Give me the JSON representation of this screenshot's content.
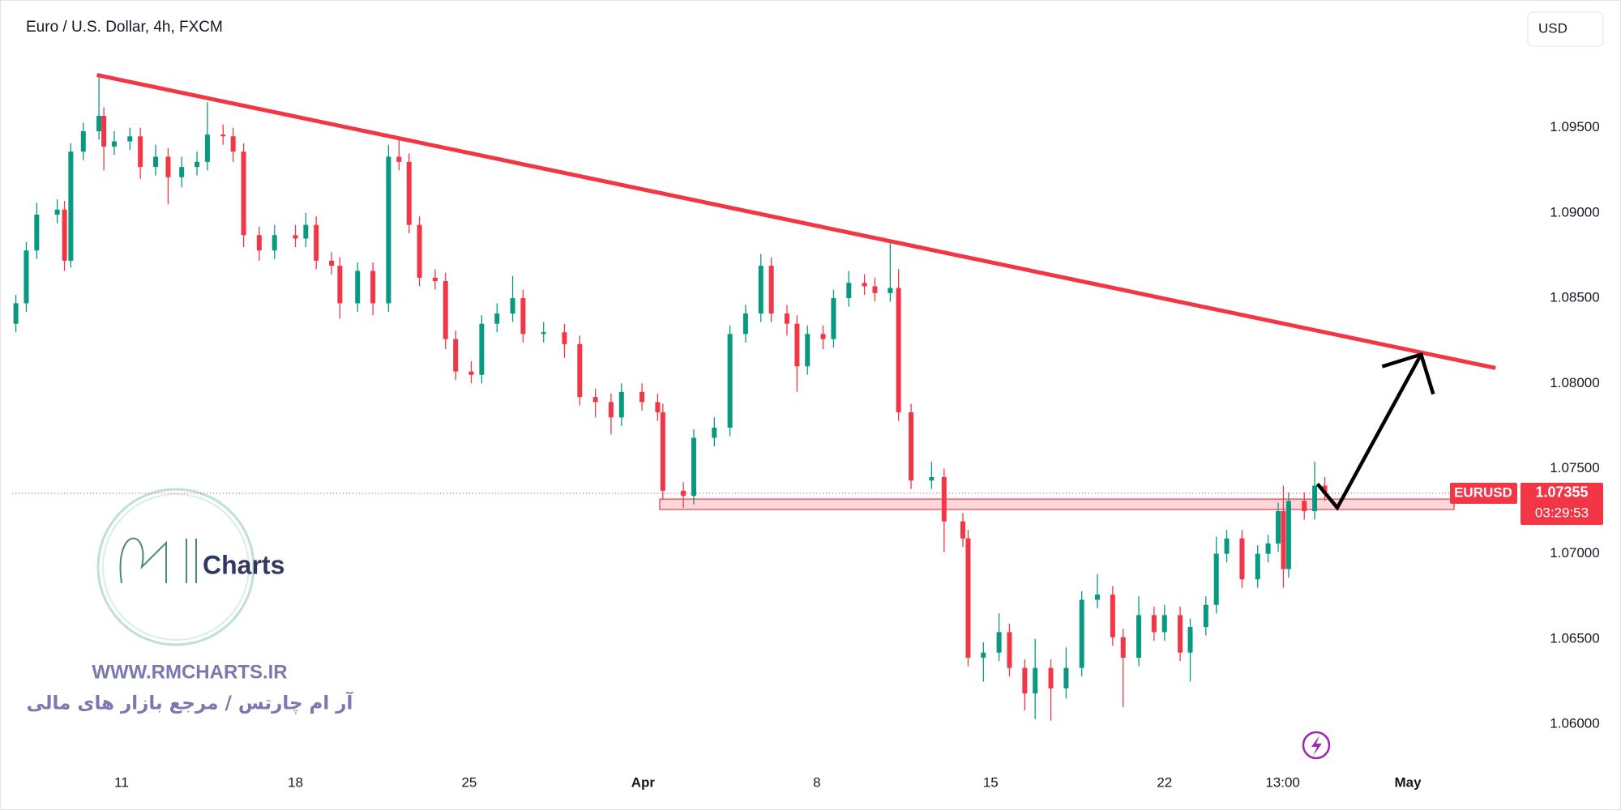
{
  "chart_data": {
    "type": "candlestick",
    "title": "Euro / U.S. Dollar, 4h, FXCM",
    "currency": "USD",
    "symbol": "EURUSD",
    "countdown": "03:29:53",
    "up_color": "#089981",
    "down_color": "#f23645",
    "x": [
      -3.04,
      -2.74,
      -2.44,
      -1.85,
      -1.64,
      -1.46,
      -1.1,
      -0.65,
      -0.51,
      -0.21,
      0.24,
      0.54,
      0.98,
      1.34,
      1.73,
      2.17,
      2.47,
      2.92,
      3.21,
      3.51,
      3.96,
      4.4,
      5,
      5.3,
      5.6,
      6.04,
      6.28,
      6.79,
      7.23,
      7.68,
      7.98,
      8.27,
      8.57,
      9.02,
      9.32,
      9.61,
      10.06,
      10.36,
      10.8,
      11.25,
      11.55,
      12.14,
      12.74,
      13.18,
      13.63,
      14.08,
      14.38,
      14.97,
      15.42,
      15.57,
      16.16,
      16.46,
      17.05,
      17.5,
      17.95,
      18.39,
      18.69,
      19.14,
      19.43,
      19.73,
      20.18,
      20.48,
      20.92,
      21.37,
      21.67,
      22.11,
      22.35,
      22.71,
      23.3,
      23.66,
      24.2,
      24.35,
      24.79,
      25.24,
      25.54,
      25.98,
      26.28,
      26.73,
      27.17,
      27.62,
      28.07,
      28.51,
      28.81,
      29.26,
      29.7,
      30,
      30.45,
      30.74,
      31.19,
      31.49,
      31.79,
      32.23,
      32.68,
      32.98,
      33.27,
      33.42,
      33.57,
      34.02,
      34.32,
      34.61
    ],
    "open": [
      1.0835,
      1.0847,
      1.0878,
      1.0899,
      1.0902,
      1.0872,
      1.0936,
      1.0948,
      1.0957,
      1.0939,
      1.0942,
      1.0945,
      1.0927,
      1.0933,
      1.0921,
      1.0927,
      1.093,
      1.0946,
      1.0945,
      1.0936,
      1.0887,
      1.0878,
      1.0887,
      1.0885,
      1.0893,
      1.0872,
      1.0869,
      1.0847,
      1.0866,
      1.0847,
      1.0933,
      1.093,
      1.0893,
      1.0862,
      1.086,
      1.0826,
      1.0807,
      1.0805,
      1.0835,
      1.0841,
      1.085,
      1.0829,
      1.083,
      1.0823,
      1.0792,
      1.0789,
      1.078,
      1.0795,
      1.0789,
      1.0783,
      1.0737,
      1.0734,
      1.0768,
      1.0774,
      1.0829,
      1.0841,
      1.0869,
      1.0841,
      1.0835,
      1.081,
      1.0829,
      1.0826,
      1.085,
      1.0859,
      1.0857,
      1.0853,
      1.0856,
      1.0783,
      1.0743,
      1.0745,
      1.0719,
      1.0709,
      1.0639,
      1.0642,
      1.0654,
      1.0633,
      1.0618,
      1.0633,
      1.0621,
      1.0633,
      1.0673,
      1.0676,
      1.0651,
      1.0639,
      1.0664,
      1.0654,
      1.0664,
      1.0642,
      1.0657,
      1.067,
      1.07,
      1.0709,
      1.0685,
      1.07,
      1.0706,
      1.0725,
      1.0691,
      1.0731,
      1.0725,
      1.074
    ],
    "high": [
      1.0852,
      1.0883,
      1.0906,
      1.0908,
      1.0907,
      1.0941,
      1.0953,
      1.0981,
      1.0962,
      1.0948,
      1.095,
      1.095,
      1.094,
      1.0938,
      1.0933,
      1.0936,
      1.0965,
      1.0952,
      1.095,
      1.0941,
      1.0892,
      1.0893,
      1.0893,
      1.09,
      1.0898,
      1.0877,
      1.0874,
      1.0871,
      1.0871,
      1.094,
      1.0943,
      1.0935,
      1.0898,
      1.0867,
      1.0865,
      1.0831,
      1.0813,
      1.084,
      1.0847,
      1.0863,
      1.0855,
      1.0836,
      1.0835,
      1.0828,
      1.0797,
      1.0794,
      1.08,
      1.08,
      1.0794,
      1.0788,
      1.0742,
      1.0773,
      1.078,
      1.0834,
      1.0846,
      1.0876,
      1.0874,
      1.0846,
      1.084,
      1.0834,
      1.0834,
      1.0855,
      1.0866,
      1.0864,
      1.0862,
      1.0883,
      1.0867,
      1.0788,
      1.0754,
      1.075,
      1.0724,
      1.0714,
      1.0648,
      1.0665,
      1.0659,
      1.0638,
      1.065,
      1.0638,
      1.0645,
      1.0678,
      1.0688,
      1.0681,
      1.0656,
      1.0675,
      1.0669,
      1.067,
      1.0669,
      1.0662,
      1.0675,
      1.071,
      1.0714,
      1.0714,
      1.0705,
      1.0711,
      1.073,
      1.074,
      1.0736,
      1.0736,
      1.0754,
      1.0745
    ],
    "low": [
      1.083,
      1.0842,
      1.0873,
      1.0894,
      1.0866,
      1.0868,
      1.0931,
      1.0943,
      1.0925,
      1.0934,
      1.0937,
      1.092,
      1.0922,
      1.0905,
      1.0915,
      1.0922,
      1.0925,
      1.094,
      1.093,
      1.088,
      1.0872,
      1.0873,
      1.088,
      1.088,
      1.0867,
      1.0864,
      1.0838,
      1.0842,
      1.084,
      1.0842,
      1.0925,
      1.0888,
      1.0857,
      1.0855,
      1.082,
      1.0802,
      1.08,
      1.08,
      1.083,
      1.0836,
      1.0824,
      1.0824,
      1.0815,
      1.0787,
      1.078,
      1.077,
      1.0775,
      1.0784,
      1.0778,
      1.0732,
      1.0727,
      1.0729,
      1.0763,
      1.0769,
      1.0824,
      1.0836,
      1.0836,
      1.0828,
      1.0795,
      1.0805,
      1.082,
      1.0821,
      1.0845,
      1.0852,
      1.0848,
      1.0848,
      1.0778,
      1.0738,
      1.0738,
      1.0701,
      1.0704,
      1.0634,
      1.0625,
      1.0637,
      1.0628,
      1.0608,
      1.0603,
      1.0602,
      1.0615,
      1.0628,
      1.0668,
      1.0646,
      1.061,
      1.0634,
      1.0649,
      1.0649,
      1.0637,
      1.0625,
      1.0652,
      1.0665,
      1.0695,
      1.068,
      1.068,
      1.0695,
      1.0701,
      1.068,
      1.0686,
      1.072,
      1.072,
      1.0731
    ],
    "close": [
      1.0847,
      1.0878,
      1.0899,
      1.0902,
      1.0872,
      1.0936,
      1.0948,
      1.0957,
      1.0939,
      1.0942,
      1.0945,
      1.0927,
      1.0933,
      1.0921,
      1.0927,
      1.093,
      1.0946,
      1.0945,
      1.0936,
      1.0887,
      1.0878,
      1.0887,
      1.0885,
      1.0893,
      1.0872,
      1.0869,
      1.0847,
      1.0866,
      1.0847,
      1.0933,
      1.093,
      1.0893,
      1.0862,
      1.086,
      1.0826,
      1.0807,
      1.0805,
      1.0835,
      1.0841,
      1.085,
      1.0829,
      1.083,
      1.0823,
      1.0792,
      1.0789,
      1.078,
      1.0795,
      1.0789,
      1.0783,
      1.0737,
      1.0734,
      1.0768,
      1.0774,
      1.0829,
      1.0841,
      1.0869,
      1.0841,
      1.0835,
      1.081,
      1.0829,
      1.0826,
      1.085,
      1.0859,
      1.0857,
      1.0853,
      1.0856,
      1.0783,
      1.0743,
      1.0745,
      1.0719,
      1.0709,
      1.0639,
      1.0642,
      1.0654,
      1.0633,
      1.0618,
      1.0633,
      1.0621,
      1.0633,
      1.0673,
      1.0676,
      1.0651,
      1.0639,
      1.0664,
      1.0654,
      1.0664,
      1.0642,
      1.0657,
      1.067,
      1.07,
      1.0709,
      1.0685,
      1.07,
      1.0706,
      1.0725,
      1.0691,
      1.0731,
      1.0725,
      1.074,
      1.07355
    ],
    "xlim": [
      -3.147,
      40.1
    ],
    "ylim": [
      1.0571,
      1.1025
    ],
    "xticks": [
      {
        "value": 0,
        "label": "11"
      },
      {
        "value": 5,
        "label": "18"
      },
      {
        "value": 10,
        "label": "25"
      },
      {
        "value": 15,
        "label": "Apr"
      },
      {
        "value": 20,
        "label": "8"
      },
      {
        "value": 25,
        "label": "15"
      },
      {
        "value": 30,
        "label": "22"
      },
      {
        "value": 33.4,
        "label": "13:00"
      },
      {
        "value": 37,
        "label": "May"
      }
    ],
    "yticks": [
      {
        "value": 1.095,
        "label": "1.09500"
      },
      {
        "value": 1.09,
        "label": "1.09000"
      },
      {
        "value": 1.085,
        "label": "1.08500"
      },
      {
        "value": 1.08,
        "label": "1.08000"
      },
      {
        "value": 1.075,
        "label": "1.07500"
      },
      {
        "value": 1.07,
        "label": "1.07000"
      },
      {
        "value": 1.065,
        "label": "1.06500"
      },
      {
        "value": 1.06,
        "label": "1.06000"
      }
    ],
    "trendline": {
      "x": [
        -0.71,
        39.52
      ],
      "y": [
        1.0981,
        1.0809
      ],
      "color": "#f23645"
    },
    "zone": {
      "x": [
        15.48,
        38.33
      ],
      "y": [
        1.0726,
        1.07321
      ]
    },
    "arrow": {
      "x": [
        34.4,
        34.97,
        37.38
      ],
      "y": [
        1.0741,
        1.0727,
        1.0817
      ]
    },
    "watermark": {
      "logo": "Charts",
      "site": "WWW.RMCHARTS.IR",
      "tagline": "آر ام چارتس / مرجع بازار های مالی"
    }
  }
}
